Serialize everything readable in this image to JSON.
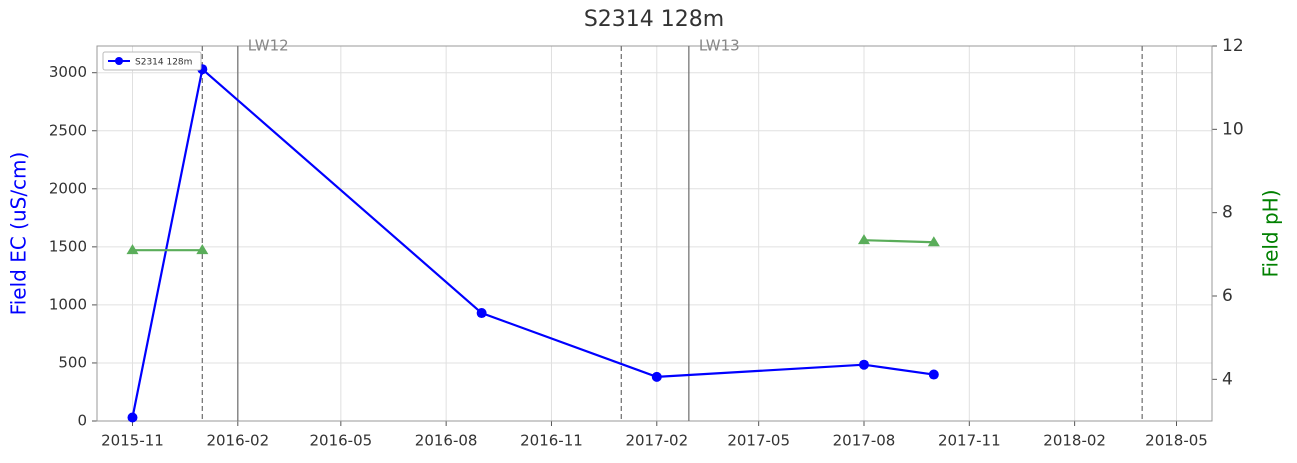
{
  "chart_data": {
    "type": "line",
    "title": "S2314 128m",
    "x": [
      "2015-11",
      "2016-01",
      "2016-09",
      "2017-02",
      "2017-08",
      "2017-10"
    ],
    "series": [
      {
        "name": "S2314 128m",
        "color": "#0000ff",
        "values": [
          30,
          3030,
          930,
          380,
          485,
          400
        ],
        "marker": "circle"
      },
      {
        "color": "#5aad5a",
        "values": [
          7.1,
          7.1,
          null,
          null,
          7.34,
          7.29
        ],
        "axis": "y2",
        "marker": "triangle"
      }
    ],
    "ylabel": "Field EC (uS/cm)",
    "y2label": "Field pH)",
    "ylabel_color": "#0000ff",
    "y2label_color": "#008000",
    "xlim": [
      "2015-10",
      "2018-06"
    ],
    "xticks": [
      "2015-11",
      "2016-02",
      "2016-05",
      "2016-08",
      "2016-11",
      "2017-02",
      "2017-05",
      "2017-08",
      "2017-11",
      "2018-02",
      "2018-05"
    ],
    "ylim": [
      0,
      3230
    ],
    "yticks": [
      0,
      500,
      1000,
      1500,
      2000,
      2500,
      3000
    ],
    "y2lim": [
      3,
      12
    ],
    "y2ticks": [
      4,
      6,
      8,
      10,
      12
    ],
    "vlines": [
      {
        "x": "2016-01",
        "style": "dashed"
      },
      {
        "x": "2016-02",
        "style": "solid",
        "label": "LW12"
      },
      {
        "x": "2017-01",
        "style": "dashed"
      },
      {
        "x": "2017-03",
        "style": "solid",
        "label": "LW13"
      },
      {
        "x": "2018-04",
        "style": "dashed"
      }
    ],
    "grid": true,
    "legend": "upper left"
  }
}
